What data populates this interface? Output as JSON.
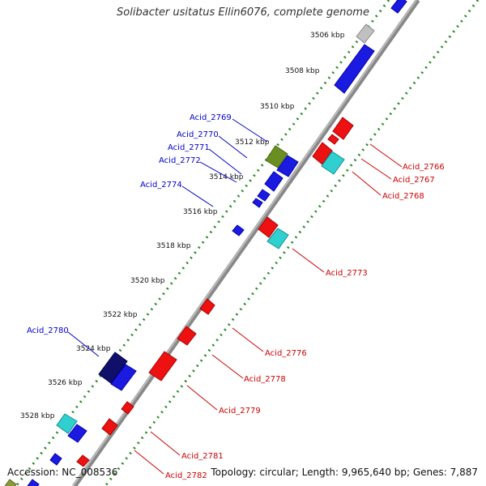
{
  "title": "Solibacter usitatus Ellin6076, complete genome",
  "footer": {
    "accession": "Accession: NC_008536",
    "topology": "Topology: circular; Length: 9,965,640 bp; Genes: 7,887"
  },
  "colors": {
    "line_red": "#cc0000",
    "line_blue": "#0000cc",
    "tick_green": "#228822",
    "backbone": "#777777"
  },
  "ticks": [
    "3506 kbp",
    "3508 kbp",
    "3510 kbp",
    "3512 kbp",
    "3514 kbp",
    "3516 kbp",
    "3518 kbp",
    "3520 kbp",
    "3522 kbp",
    "3524 kbp",
    "3526 kbp",
    "3528 kbp"
  ],
  "gene_labels_left": [
    "Acid_2769",
    "Acid_2770",
    "Acid_2771",
    "Acid_2772",
    "Acid_2774",
    "Acid_2780"
  ],
  "gene_labels_right": [
    "Acid_2766",
    "Acid_2767",
    "Acid_2768",
    "Acid_2773",
    "Acid_2776",
    "Acid_2778",
    "Acid_2779",
    "Acid_2781",
    "Acid_2782"
  ]
}
